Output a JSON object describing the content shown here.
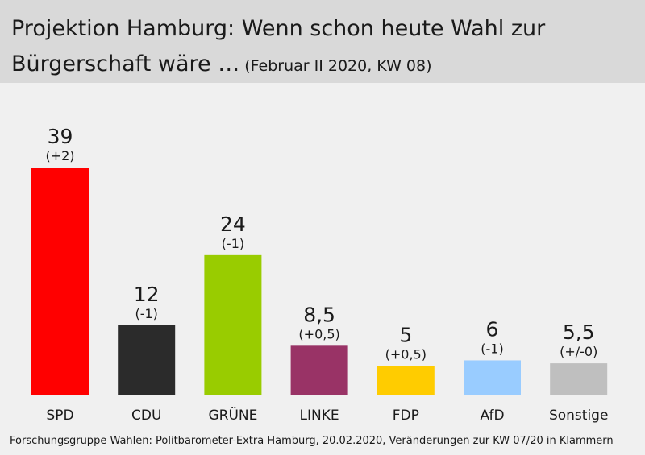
{
  "header": {
    "title_line1": "Projektion Hamburg: Wenn schon heute Wahl zur",
    "title_line2": "Bürgerschaft wäre …",
    "subtitle": "(Februar II 2020, KW 08)"
  },
  "chart_data": {
    "type": "bar",
    "categories": [
      "SPD",
      "CDU",
      "GRÜNE",
      "LINKE",
      "FDP",
      "AfD",
      "Sonstige"
    ],
    "values": [
      39,
      12,
      24,
      8.5,
      5,
      6,
      5.5
    ],
    "value_labels": [
      "39",
      "12",
      "24",
      "8,5",
      "5",
      "6",
      "5,5"
    ],
    "changes": [
      "(+2)",
      "(-1)",
      "(-1)",
      "(+0,5)",
      "(+0,5)",
      "(-1)",
      "(+/-0)"
    ],
    "colors": [
      "#ff0000",
      "#2b2b2b",
      "#99cc00",
      "#993366",
      "#ffcc00",
      "#99ccff",
      "#bfbfbf"
    ],
    "ylim": [
      0,
      39
    ]
  },
  "footer": {
    "source": "Forschungsgruppe Wahlen: Politbarometer-Extra Hamburg, 20.02.2020, Veränderungen zur KW 07/20 in Klammern"
  }
}
